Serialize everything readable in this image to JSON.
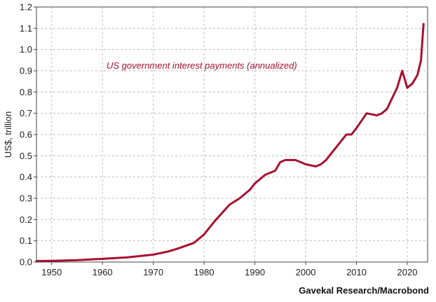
{
  "chart_data": {
    "type": "line",
    "title": "",
    "annotation": "US government interest payments (annualized)",
    "xlabel": "",
    "ylabel": "US$, trillion",
    "source": "Gavekal Research/Macrobond",
    "xlim": [
      1947,
      2024
    ],
    "ylim": [
      0,
      1.2
    ],
    "x_ticks": [
      1950,
      1960,
      1970,
      1980,
      1990,
      2000,
      2010,
      2020
    ],
    "y_ticks": [
      0.0,
      0.1,
      0.2,
      0.3,
      0.4,
      0.5,
      0.6,
      0.7,
      0.8,
      0.9,
      1.0,
      1.1,
      1.2
    ],
    "y_tick_labels": [
      "0.0",
      "0.1",
      "0.2",
      "0.3",
      "0.4",
      "0.5",
      "0.6",
      "0.7",
      "0.8",
      "0.9",
      "1.0",
      "1.1",
      "1.2"
    ],
    "grid": true,
    "series": [
      {
        "color": "#a8102e",
        "x": [
          1947,
          1950,
          1955,
          1960,
          1965,
          1970,
          1973,
          1975,
          1978,
          1980,
          1982,
          1985,
          1987,
          1989,
          1990,
          1992,
          1994,
          1995,
          1996,
          1998,
          1999,
          2000,
          2002,
          2003,
          2004,
          2006,
          2008,
          2009,
          2010,
          2012,
          2014,
          2015,
          2016,
          2018,
          2019,
          2020,
          2021,
          2022,
          2022.7,
          2023.2
        ],
        "y": [
          0.005,
          0.006,
          0.009,
          0.015,
          0.022,
          0.035,
          0.05,
          0.065,
          0.09,
          0.13,
          0.19,
          0.27,
          0.3,
          0.34,
          0.37,
          0.41,
          0.43,
          0.47,
          0.48,
          0.48,
          0.47,
          0.46,
          0.45,
          0.46,
          0.48,
          0.54,
          0.6,
          0.6,
          0.63,
          0.7,
          0.69,
          0.7,
          0.72,
          0.82,
          0.9,
          0.82,
          0.84,
          0.88,
          0.95,
          1.12
        ]
      }
    ]
  }
}
